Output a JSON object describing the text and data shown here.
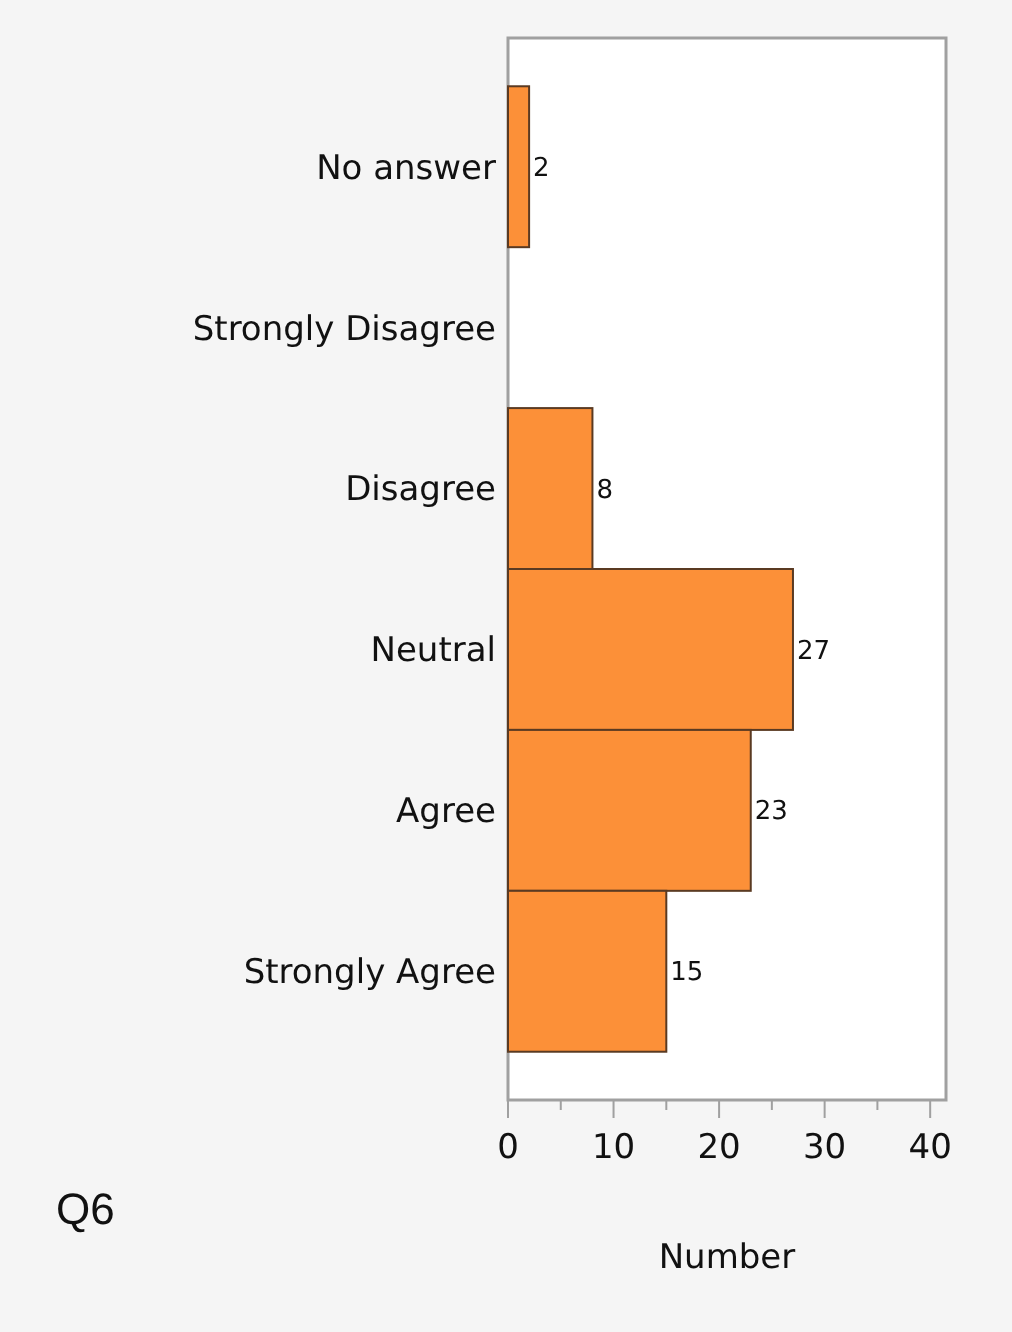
{
  "chart_data": {
    "type": "bar",
    "orientation": "horizontal",
    "title": "Q6",
    "xlabel": "Number",
    "categories": [
      "No answer",
      "Strongly Disagree",
      "Disagree",
      "Neutral",
      "Agree",
      "Strongly Agree"
    ],
    "values": [
      2,
      0,
      8,
      27,
      23,
      15
    ],
    "value_labels": [
      "2",
      null,
      "8",
      "27",
      "23",
      "15"
    ],
    "color": "#fc9038",
    "xlim": [
      0,
      41.5
    ],
    "xticks": [
      0,
      {
        "value": 5,
        "label": null
      },
      10,
      {
        "value": 15,
        "label": null
      },
      20,
      {
        "value": 25,
        "label": null
      },
      30,
      {
        "value": 35,
        "label": null
      },
      40
    ],
    "grid": false
  }
}
